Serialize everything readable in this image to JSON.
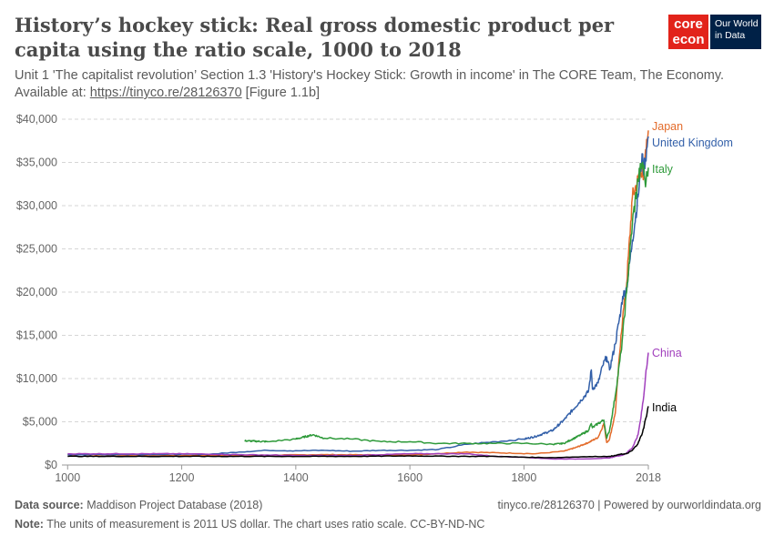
{
  "header": {
    "title": "History’s hockey stick: Real gross domestic product per capita using the ratio scale, 1000 to 2018",
    "subtitle_text": "Unit 1 'The capitalist revolution’ Section 1.3 'History's Hockey Stick: Growth in income' in The CORE Team, The Economy. Available at:",
    "subtitle_link": "https://tinyco.re/28126370",
    "subtitle_suffix": "[Figure 1.1b]"
  },
  "logos": {
    "core_line1": "core",
    "core_line2": "econ",
    "owid_line1": "Our World",
    "owid_line2": "in Data"
  },
  "footer": {
    "source_label": "Data source:",
    "source_text": "Maddison Project Database (2018)",
    "right_text": "tinyco.re/28126370 | Powered by ourworldindata.org",
    "note_label": "Note:",
    "note_text": "The units of measurement is 2011 US dollar. The chart uses ratio scale. CC-BY-ND-NC"
  },
  "chart_data": {
    "type": "line",
    "title": "History’s hockey stick: Real gross domestic product per capita using the ratio scale, 1000 to 2018",
    "xlabel": "",
    "ylabel": "",
    "xlim": [
      990,
      2018
    ],
    "ylim": [
      0,
      40000
    ],
    "x_ticks": [
      1000,
      1200,
      1400,
      1600,
      1800,
      2018
    ],
    "x_tick_labels": [
      "1000",
      "1200",
      "1400",
      "1600",
      "1800",
      "2018"
    ],
    "y_ticks": [
      0,
      5000,
      10000,
      15000,
      20000,
      25000,
      30000,
      35000,
      40000
    ],
    "y_tick_labels": [
      "$0",
      "$5,000",
      "$10,000",
      "$15,000",
      "$20,000",
      "$25,000",
      "$30,000",
      "$35,000",
      "$40,000"
    ],
    "grid": true,
    "series": [
      {
        "name": "Japan",
        "color": "#e36b2a",
        "x": [
          1000,
          1150,
          1280,
          1450,
          1600,
          1700,
          1820,
          1870,
          1890,
          1913,
          1930,
          1940,
          1945,
          1950,
          1960,
          1970,
          1973,
          1980,
          1990,
          2000,
          2008,
          2009,
          2016,
          2018
        ],
        "y": [
          1200,
          1100,
          1100,
          1200,
          1150,
          1500,
          1300,
          1600,
          2000,
          2600,
          3200,
          4800,
          2600,
          3000,
          6000,
          15000,
          17000,
          21000,
          31000,
          33000,
          34500,
          33000,
          37500,
          38700
        ]
      },
      {
        "name": "United Kingdom",
        "color": "#3360a9",
        "x": [
          1000,
          1250,
          1300,
          1350,
          1400,
          1450,
          1500,
          1550,
          1600,
          1650,
          1700,
          1750,
          1800,
          1820,
          1850,
          1870,
          1900,
          1913,
          1918,
          1920,
          1930,
          1938,
          1945,
          1950,
          1960,
          1970,
          1973,
          1980,
          1990,
          2000,
          2007,
          2009,
          2016,
          2018
        ],
        "y": [
          1200,
          1250,
          1500,
          1700,
          1650,
          1700,
          1600,
          1700,
          1700,
          1800,
          2400,
          2700,
          3000,
          3300,
          4000,
          5200,
          7500,
          8500,
          11000,
          8800,
          9500,
          11500,
          12500,
          11000,
          14000,
          18000,
          19500,
          20500,
          26000,
          31000,
          36000,
          34000,
          36800,
          38000
        ]
      },
      {
        "name": "Italy",
        "color": "#2e9a3a",
        "x": [
          1310,
          1350,
          1400,
          1430,
          1450,
          1500,
          1550,
          1600,
          1650,
          1700,
          1750,
          1800,
          1850,
          1870,
          1900,
          1913,
          1918,
          1920,
          1930,
          1940,
          1945,
          1950,
          1960,
          1970,
          1973,
          1980,
          1990,
          2000,
          2008,
          2012,
          2014,
          2016,
          2018
        ],
        "y": [
          2800,
          2700,
          3000,
          3500,
          3100,
          3000,
          2700,
          2700,
          2500,
          2500,
          2500,
          2500,
          2400,
          2500,
          3500,
          4000,
          4800,
          4300,
          4800,
          5200,
          3100,
          4000,
          8000,
          13000,
          15000,
          20000,
          28000,
          33000,
          35000,
          33000,
          32800,
          33500,
          34400
        ]
      },
      {
        "name": "China",
        "color": "#a13fbd",
        "x": [
          1000,
          1200,
          1400,
          1500,
          1600,
          1700,
          1750,
          1800,
          1850,
          1900,
          1950,
          1960,
          1970,
          1978,
          1990,
          2000,
          2005,
          2010,
          2014,
          2018
        ],
        "y": [
          1300,
          1300,
          1100,
          1100,
          1300,
          1300,
          1000,
          900,
          700,
          700,
          800,
          1000,
          1100,
          1300,
          2000,
          3500,
          5500,
          8000,
          11000,
          13000
        ]
      },
      {
        "name": "India",
        "color": "#000000",
        "x": [
          1000,
          1500,
          1600,
          1700,
          1750,
          1800,
          1850,
          1900,
          1950,
          1960,
          1970,
          1980,
          1990,
          2000,
          2008,
          2014,
          2018
        ],
        "y": [
          1000,
          1000,
          1050,
          1000,
          1000,
          900,
          850,
          950,
          1000,
          1100,
          1250,
          1300,
          1700,
          2500,
          3800,
          5500,
          6800
        ]
      }
    ]
  }
}
